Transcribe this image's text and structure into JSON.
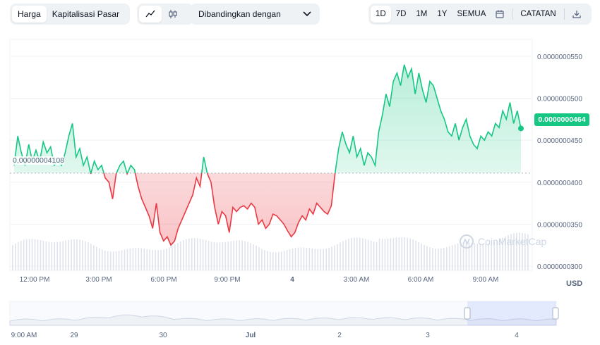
{
  "toolbar": {
    "chart_type_tabs": [
      "Harga",
      "Kapitalisasi Pasar"
    ],
    "chart_type_active": "Harga",
    "style_icons": [
      "line-chart-icon",
      "candlestick-icon"
    ],
    "compare_label": "Dibandingkan dengan",
    "range_options": [
      "1D",
      "7D",
      "1M",
      "1Y",
      "SEMUA"
    ],
    "range_active": "1D",
    "notes_label": "CATATAN",
    "icons": [
      "calendar-icon",
      "download-icon"
    ]
  },
  "watermark": "CoinMarketCap",
  "current_price_label": "0.0000000464",
  "open_price_label": "0,00000004108",
  "currency": "USD",
  "colors": {
    "up": "#16c784",
    "down": "#ea3943",
    "accent": "#3861fb"
  },
  "navigator": {
    "labels": [
      "9:00 AM",
      "29",
      "30",
      "Jul",
      "2",
      "3",
      "4"
    ]
  },
  "chart_data": {
    "type": "line",
    "x_ticks": [
      "12:00 PM",
      "3:00 PM",
      "6:00 PM",
      "9:00 PM",
      "4",
      "3:00 AM",
      "6:00 AM",
      "9:00 AM"
    ],
    "y_ticks": [
      "0.0000000300",
      "0.0000000350",
      "0.0000000400",
      "0.0000000450",
      "0.0000000500",
      "0.0000000550"
    ],
    "ylim": [
      2.95e-08,
      5.7e-08
    ],
    "baseline": 4.108e-08,
    "series": [
      {
        "values": [
          4.2e-08,
          4.55e-08,
          4.35e-08,
          4.2e-08,
          4.45e-08,
          4.25e-08,
          4.38e-08,
          4.25e-08,
          4.48e-08,
          4.35e-08,
          4.42e-08,
          4.2e-08,
          4.25e-08,
          4.2e-08,
          4.35e-08,
          4.55e-08,
          4.7e-08,
          4.3e-08,
          4.4e-08,
          4.2e-08,
          4.3e-08,
          4.1e-08,
          4.25e-08,
          4.15e-08,
          4.2e-08,
          4.05e-08,
          4e-08,
          3.8e-08,
          4.1e-08,
          4.2e-08,
          4.25e-08,
          4.1e-08,
          4.2e-08,
          4.15e-08,
          3.95e-08,
          3.8e-08,
          3.7e-08,
          3.6e-08,
          3.45e-08,
          3.75e-08,
          3.4e-08,
          3.3e-08,
          3.35e-08,
          3.25e-08,
          3.3e-08,
          3.45e-08,
          3.55e-08,
          3.65e-08,
          3.75e-08,
          3.85e-08,
          4.05e-08,
          3.95e-08,
          4.3e-08,
          4.1e-08,
          4e-08,
          3.7e-08,
          3.5e-08,
          3.65e-08,
          3.6e-08,
          3.4e-08,
          3.7e-08,
          3.65e-08,
          3.7e-08,
          3.72e-08,
          3.68e-08,
          3.75e-08,
          3.7e-08,
          3.5e-08,
          3.55e-08,
          3.45e-08,
          3.5e-08,
          3.62e-08,
          3.6e-08,
          3.55e-08,
          3.5e-08,
          3.42e-08,
          3.35e-08,
          3.4e-08,
          3.52e-08,
          3.6e-08,
          3.55e-08,
          3.68e-08,
          3.62e-08,
          3.75e-08,
          3.7e-08,
          3.65e-08,
          3.62e-08,
          3.72e-08,
          4.1e-08,
          4.4e-08,
          4.6e-08,
          4.45e-08,
          4.35e-08,
          4.55e-08,
          4.3e-08,
          4.4e-08,
          4.2e-08,
          4.35e-08,
          4.3e-08,
          4.2e-08,
          4.6e-08,
          4.8e-08,
          5.05e-08,
          4.9e-08,
          5.2e-08,
          5.3e-08,
          5.15e-08,
          5.4e-08,
          5.25e-08,
          5.35e-08,
          5.05e-08,
          5.3e-08,
          5.1e-08,
          4.95e-08,
          5.2e-08,
          5.15e-08,
          5e-08,
          4.85e-08,
          4.75e-08,
          4.6e-08,
          4.55e-08,
          4.7e-08,
          4.5e-08,
          4.65e-08,
          4.75e-08,
          4.55e-08,
          4.45e-08,
          4.4e-08,
          4.55e-08,
          4.5e-08,
          4.6e-08,
          4.55e-08,
          4.7e-08,
          4.65e-08,
          4.85e-08,
          4.75e-08,
          4.95e-08,
          4.7e-08,
          4.85e-08,
          4.64e-08
        ]
      }
    ]
  }
}
